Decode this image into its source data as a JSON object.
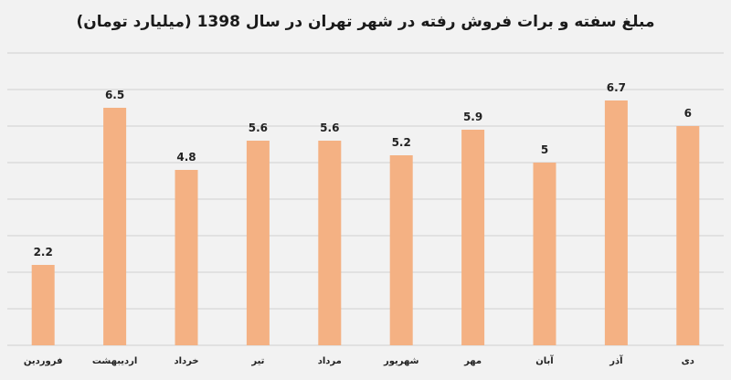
{
  "chart_data": {
    "type": "bar",
    "title": "مبلغ سفته و برات فروش رفته در شهر تهران در سال 1398 (میلیارد تومان)",
    "xlabel": "",
    "ylabel": "",
    "categories": [
      "فروردین",
      "اردیبهشت",
      "خرداد",
      "تیر",
      "مرداد",
      "شهریور",
      "مهر",
      "آبان",
      "آذر",
      "دی"
    ],
    "values": [
      2.2,
      6.5,
      4.8,
      5.6,
      5.6,
      5.2,
      5.9,
      5,
      6.7,
      6
    ],
    "value_labels": [
      "2.2",
      "6.5",
      "4.8",
      "5.6",
      "5.6",
      "5.2",
      "5.9",
      "5",
      "6.7",
      "6"
    ],
    "ylim": [
      0,
      8
    ],
    "grid": true,
    "legend": "none",
    "colors": {
      "bar": "#f4b183",
      "grid": "#d0d0d0",
      "background": "#f2f2f2"
    }
  }
}
